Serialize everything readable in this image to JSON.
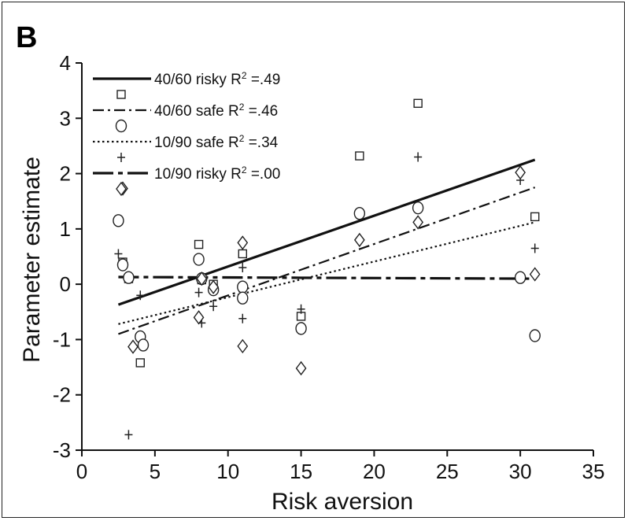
{
  "panel_label": "B",
  "chart_data": {
    "type": "scatter",
    "xlabel": "Risk aversion",
    "ylabel": "Parameter estimate",
    "xlim": [
      0,
      35
    ],
    "ylim": [
      -3,
      4
    ],
    "xticks": [
      "0",
      "5",
      "10",
      "15",
      "20",
      "25",
      "30",
      "35"
    ],
    "yticks": [
      "-3",
      "-2",
      "-1",
      "0",
      "1",
      "2",
      "3",
      "4"
    ],
    "grid": false,
    "legend_position": "top-left",
    "series": [
      {
        "name": "40/60 risky",
        "r2_label": ".49",
        "marker": "square",
        "line_style": "solid",
        "points": [
          [
            2.8,
            0.4
          ],
          [
            3.2,
            0.1
          ],
          [
            4,
            -1.42
          ],
          [
            8,
            0.72
          ],
          [
            8.2,
            0.08
          ],
          [
            9,
            0.0
          ],
          [
            11,
            0.55
          ],
          [
            15,
            -0.58
          ],
          [
            19,
            2.32
          ],
          [
            23,
            3.27
          ],
          [
            31,
            1.22
          ]
        ],
        "fit": [
          [
            2.5,
            -0.37
          ],
          [
            31,
            2.25
          ]
        ]
      },
      {
        "name": "40/60 safe",
        "r2_label": ".46",
        "marker": "circle",
        "line_style": "dash-dot",
        "points": [
          [
            2.5,
            1.15
          ],
          [
            2.8,
            0.35
          ],
          [
            3.2,
            0.12
          ],
          [
            4,
            -0.95
          ],
          [
            4.2,
            -1.1
          ],
          [
            8,
            0.45
          ],
          [
            8.2,
            0.1
          ],
          [
            9,
            -0.1
          ],
          [
            11,
            -0.05
          ],
          [
            11,
            -0.25
          ],
          [
            15,
            -0.8
          ],
          [
            19,
            1.28
          ],
          [
            23,
            1.38
          ],
          [
            30,
            0.12
          ],
          [
            31,
            -0.93
          ]
        ],
        "fit": [
          [
            2.5,
            -0.9
          ],
          [
            31,
            1.75
          ]
        ]
      },
      {
        "name": "10/90 safe",
        "r2_label": ".34",
        "marker": "plus",
        "line_style": "dotted",
        "points": [
          [
            2.5,
            0.55
          ],
          [
            3.2,
            -2.72
          ],
          [
            4,
            -0.2
          ],
          [
            8,
            -0.15
          ],
          [
            8.2,
            -0.7
          ],
          [
            9,
            -0.4
          ],
          [
            11,
            0.3
          ],
          [
            11,
            -0.62
          ],
          [
            15,
            -0.45
          ],
          [
            19,
            0.82
          ],
          [
            23,
            2.3
          ],
          [
            30,
            1.88
          ],
          [
            31,
            0.65
          ]
        ],
        "fit": [
          [
            2.5,
            -0.72
          ],
          [
            31,
            1.12
          ]
        ]
      },
      {
        "name": "10/90 risky",
        "r2_label": ".00",
        "marker": "diamond",
        "line_style": "long-dash-dot",
        "points": [
          [
            2.8,
            1.73
          ],
          [
            3.5,
            -1.13
          ],
          [
            8,
            -0.6
          ],
          [
            8.2,
            0.1
          ],
          [
            9,
            -0.05
          ],
          [
            11,
            0.75
          ],
          [
            11,
            -1.12
          ],
          [
            15,
            -1.52
          ],
          [
            19,
            0.8
          ],
          [
            23,
            1.12
          ],
          [
            30,
            2.02
          ],
          [
            31,
            0.18
          ]
        ],
        "fit": [
          [
            2.5,
            0.13
          ],
          [
            31,
            0.1
          ]
        ]
      }
    ]
  }
}
